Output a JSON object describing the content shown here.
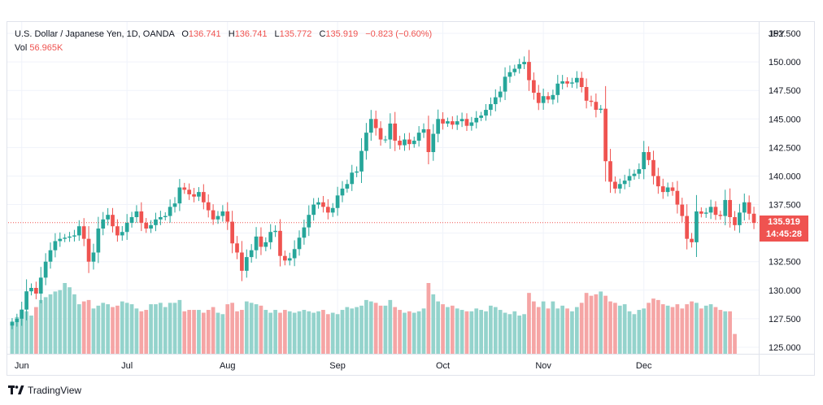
{
  "header": {
    "symbol": "U.S. Dollar / Japanese Yen, 1D, OANDA",
    "o_label": "O",
    "o_value": "136.741",
    "h_label": "H",
    "h_value": "136.741",
    "l_label": "L",
    "l_value": "135.772",
    "c_label": "C",
    "c_value": "135.919",
    "change": "−0.823 (−0.60%)",
    "vol_label": "Vol",
    "vol_value": "56.965K"
  },
  "price_tag": {
    "price": "135.919",
    "countdown": "14:45:28"
  },
  "brand": {
    "name": "TradingView"
  },
  "colors": {
    "up": "#26a69a",
    "down": "#ef5350",
    "vol_up": "#94d3cc",
    "vol_down": "#f5a5a5"
  },
  "chart_data": {
    "type": "candlestick",
    "ylabel": "JPY",
    "ylim": [
      124.5,
      153.5
    ],
    "yticks": [
      "125.000",
      "127.500",
      "130.000",
      "132.500",
      "135.000",
      "137.500",
      "140.000",
      "142.500",
      "145.000",
      "147.500",
      "150.000",
      "152.500"
    ],
    "xticks": [
      {
        "label": "Jun",
        "index": 2
      },
      {
        "label": "Jul",
        "index": 24
      },
      {
        "label": "Aug",
        "index": 45
      },
      {
        "label": "Sep",
        "index": 68
      },
      {
        "label": "Oct",
        "index": 90
      },
      {
        "label": "Nov",
        "index": 111
      },
      {
        "label": "Dec",
        "index": 132
      }
    ],
    "last_price": 135.919,
    "grid": true,
    "closes": [
      127.2,
      127.5,
      128.3,
      129.9,
      130.2,
      129.7,
      131.1,
      132.5,
      133.5,
      134.3,
      134.5,
      134.6,
      134.7,
      134.8,
      135.6,
      134.5,
      132.5,
      133.3,
      135.4,
      136.2,
      136.6,
      135.6,
      134.8,
      135.1,
      135.9,
      136.4,
      136.9,
      135.9,
      135.4,
      135.7,
      136.2,
      136.4,
      136.5,
      137.3,
      137.6,
      139.0,
      138.8,
      138.4,
      138.2,
      138.6,
      137.7,
      137.0,
      136.2,
      136.5,
      136.9,
      136.0,
      134.1,
      133.3,
      131.7,
      132.9,
      133.5,
      134.7,
      133.8,
      134.2,
      135.1,
      135.2,
      133.0,
      132.6,
      132.8,
      133.6,
      134.6,
      135.5,
      136.6,
      137.5,
      137.7,
      137.3,
      136.8,
      137.2,
      138.3,
      138.9,
      139.3,
      140.3,
      140.4,
      142.2,
      143.8,
      145.0,
      144.2,
      143.2,
      143.2,
      144.6,
      143.1,
      142.7,
      143.2,
      142.8,
      143.1,
      143.8,
      144.1,
      142.1,
      143.7,
      145.0,
      144.6,
      144.8,
      144.5,
      144.8,
      145.0,
      144.4,
      144.7,
      145.1,
      145.3,
      145.8,
      146.3,
      146.9,
      147.4,
      148.7,
      149.1,
      149.4,
      149.8,
      150.0,
      148.4,
      147.3,
      146.4,
      147.0,
      146.7,
      147.1,
      148.1,
      148.3,
      148.1,
      148.2,
      148.6,
      147.8,
      146.6,
      146.5,
      145.8,
      145.9,
      141.3,
      139.5,
      138.9,
      139.3,
      139.6,
      140.0,
      140.2,
      140.6,
      142.1,
      141.4,
      140.0,
      139.1,
      138.6,
      139.0,
      138.7,
      137.5,
      136.5,
      134.5,
      134.2,
      136.9,
      136.7,
      136.8,
      137.3,
      136.6,
      136.5,
      137.9,
      136.4,
      135.7,
      136.8,
      137.7,
      136.7,
      135.9
    ],
    "volumes": [
      23,
      26,
      31,
      30,
      27,
      33,
      38,
      40,
      42,
      44,
      45,
      50,
      47,
      42,
      35,
      37,
      38,
      32,
      34,
      36,
      35,
      33,
      34,
      37,
      36,
      35,
      32,
      30,
      31,
      35,
      35,
      36,
      33,
      36,
      36,
      38,
      30,
      31,
      31,
      31,
      29,
      31,
      33,
      29,
      28,
      35,
      36,
      30,
      31,
      37,
      36,
      35,
      34,
      31,
      29,
      31,
      29,
      31,
      30,
      29,
      30,
      31,
      30,
      29,
      30,
      31,
      28,
      29,
      28,
      31,
      33,
      32,
      33,
      34,
      38,
      37,
      36,
      34,
      34,
      38,
      33,
      31,
      29,
      30,
      29,
      30,
      32,
      50,
      42,
      37,
      35,
      33,
      34,
      32,
      31,
      30,
      30,
      32,
      31,
      30,
      34,
      33,
      31,
      29,
      28,
      30,
      27,
      28,
      43,
      37,
      33,
      37,
      32,
      37,
      32,
      34,
      32,
      30,
      33,
      36,
      43,
      41,
      42,
      44,
      41,
      37,
      36,
      34,
      35,
      30,
      28,
      31,
      32,
      36,
      39,
      38,
      35,
      34,
      33,
      35,
      32,
      35,
      37,
      36,
      32,
      34,
      35,
      33,
      31,
      30,
      30,
      14
    ]
  }
}
